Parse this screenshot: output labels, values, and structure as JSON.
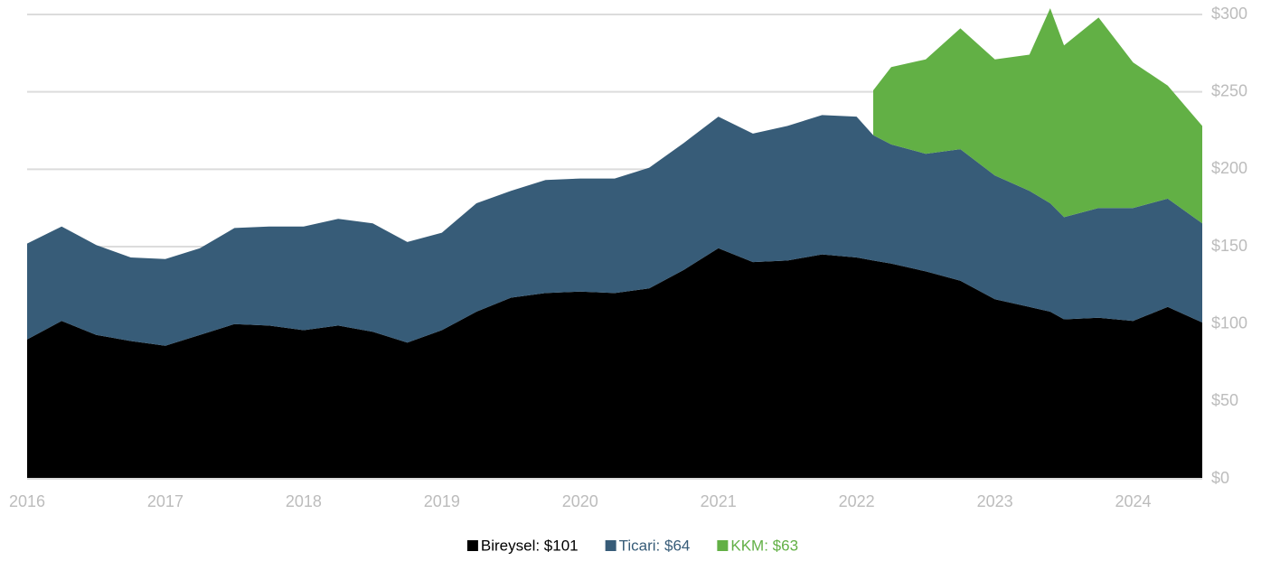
{
  "chart_data": {
    "type": "stacked-area",
    "x": [
      2016,
      2016.25,
      2016.5,
      2016.75,
      2017,
      2017.25,
      2017.5,
      2017.75,
      2018,
      2018.25,
      2018.5,
      2018.75,
      2019,
      2019.25,
      2019.5,
      2019.75,
      2020,
      2020.25,
      2020.5,
      2020.75,
      2021,
      2021.25,
      2021.5,
      2021.75,
      2022,
      2022.12,
      2022.25,
      2022.5,
      2022.75,
      2023,
      2023.25,
      2023.4,
      2023.5,
      2023.75,
      2024,
      2024.25,
      2024.5
    ],
    "series": [
      {
        "name": "Bireysel: $101",
        "color": "#000000",
        "values": [
          90,
          102,
          93,
          89,
          86,
          93,
          100,
          99,
          96,
          99,
          95,
          88,
          96,
          108,
          117,
          120,
          121,
          120,
          123,
          135,
          149,
          140,
          141,
          145,
          143,
          141,
          139,
          134,
          128,
          116,
          111,
          108,
          103,
          104,
          102,
          111,
          101
        ]
      },
      {
        "name": "Ticari: $64",
        "color": "#375c78",
        "values": [
          62,
          61,
          58,
          54,
          56,
          56,
          62,
          64,
          67,
          69,
          70,
          65,
          63,
          70,
          69,
          73,
          73,
          74,
          78,
          82,
          85,
          83,
          87,
          90,
          91,
          81,
          77,
          76,
          85,
          80,
          75,
          70,
          66,
          71,
          73,
          70,
          64
        ]
      },
      {
        "name": "KKM: $63",
        "color": "#62b045",
        "values": [
          null,
          null,
          null,
          null,
          null,
          null,
          null,
          null,
          null,
          null,
          null,
          null,
          null,
          null,
          null,
          null,
          null,
          null,
          null,
          null,
          null,
          null,
          null,
          null,
          null,
          29,
          50,
          61,
          78,
          75,
          88,
          126,
          111,
          123,
          94,
          73,
          63
        ]
      }
    ],
    "xlim": [
      2016,
      2024.5
    ],
    "xticks": [
      2016,
      2017,
      2018,
      2019,
      2020,
      2021,
      2022,
      2023,
      2024
    ],
    "ylim": [
      0,
      300
    ],
    "yticks": [
      {
        "value": 0,
        "label": "$0"
      },
      {
        "value": 50,
        "label": "$50"
      },
      {
        "value": 100,
        "label": "$100"
      },
      {
        "value": 150,
        "label": "$150"
      },
      {
        "value": 200,
        "label": "$200"
      },
      {
        "value": 250,
        "label": "$250"
      },
      {
        "value": 300,
        "label": "$300"
      }
    ],
    "grid": true,
    "legend": "bottom"
  }
}
